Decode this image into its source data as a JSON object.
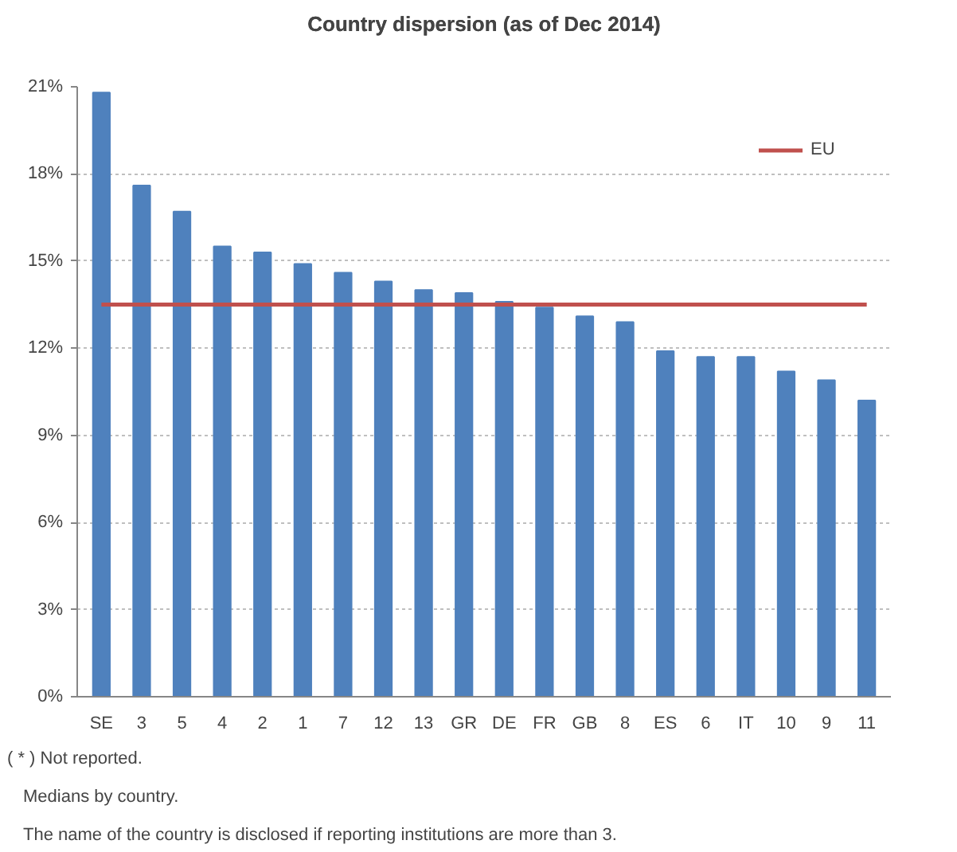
{
  "chart_data": {
    "type": "bar",
    "title": "Country dispersion (as of Dec 2014)",
    "categories": [
      "SE",
      "3",
      "5",
      "4",
      "2",
      "1",
      "7",
      "12",
      "13",
      "GR",
      "DE",
      "FR",
      "GB",
      "8",
      "ES",
      "6",
      "IT",
      "10",
      "9",
      "11"
    ],
    "series": [
      {
        "color": "#4f81bd",
        "values": [
          20.8,
          17.6,
          16.7,
          15.5,
          15.3,
          14.9,
          14.6,
          14.3,
          14.0,
          13.9,
          13.6,
          13.4,
          13.1,
          12.9,
          11.9,
          11.7,
          11.7,
          11.2,
          10.9,
          10.2
        ]
      },
      {
        "name": "EU",
        "type": "line",
        "color": "#c0504d",
        "values": [
          13.5,
          13.5,
          13.5,
          13.5,
          13.5,
          13.5,
          13.5,
          13.5,
          13.5,
          13.5,
          13.5,
          13.5,
          13.5,
          13.5,
          13.5,
          13.5,
          13.5,
          13.5,
          13.5,
          13.5
        ]
      }
    ],
    "ylim": [
      0,
      21
    ],
    "yticks": [
      {
        "value": 0,
        "label": "0%"
      },
      {
        "value": 3,
        "label": "3%"
      },
      {
        "value": 6,
        "label": "6%"
      },
      {
        "value": 9,
        "label": "9%"
      },
      {
        "value": 12,
        "label": "12%"
      },
      {
        "value": 15,
        "label": "15%"
      },
      {
        "value": 18,
        "label": "18%"
      },
      {
        "value": 21,
        "label": "21%"
      }
    ],
    "grid": "y",
    "legend": "top right",
    "line_style": "solid",
    "annotations": [
      "( * ) Not reported.",
      "Medians by country.",
      "The name of the country is disclosed if reporting institutions are more than 3."
    ]
  }
}
